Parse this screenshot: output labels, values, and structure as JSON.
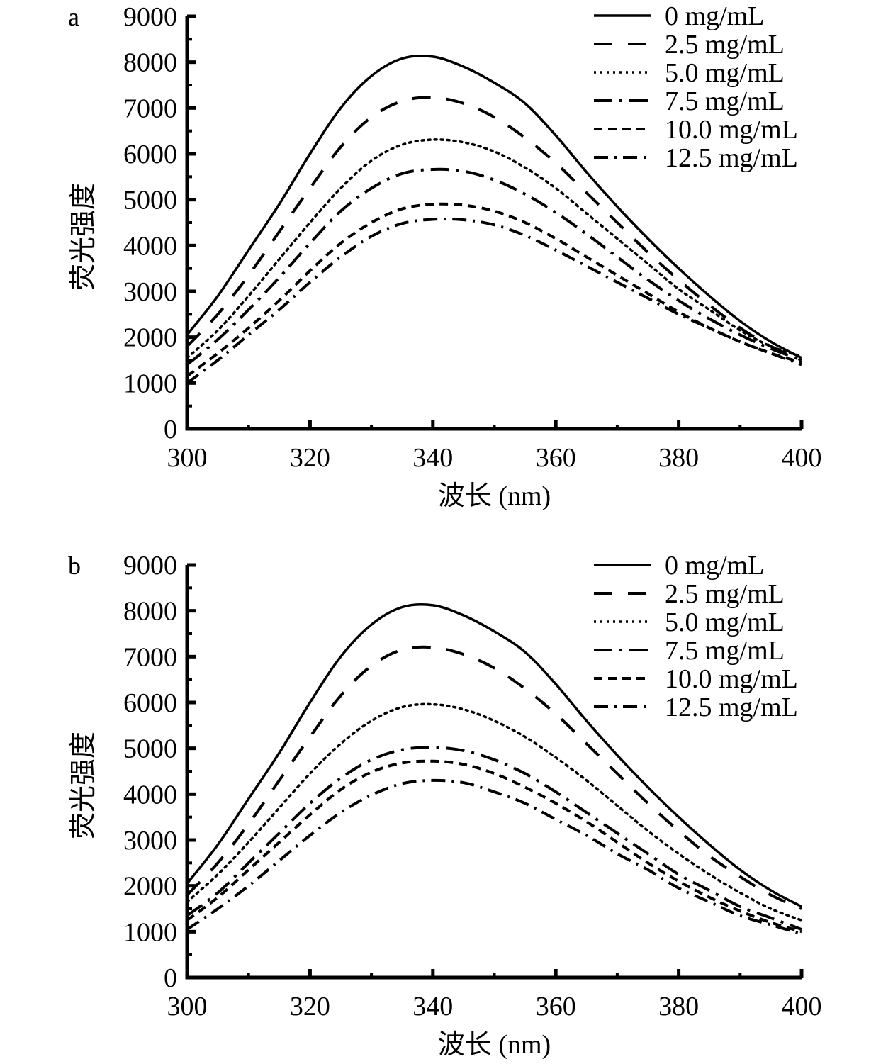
{
  "chart_data": [
    {
      "type": "line",
      "panel_label": "a",
      "title": "",
      "xlabel": "波长 (nm)",
      "ylabel": "荧光强度",
      "xlim": [
        300,
        400
      ],
      "ylim": [
        0,
        9000
      ],
      "xticks": [
        300,
        320,
        340,
        360,
        380,
        400
      ],
      "yticks": [
        0,
        1000,
        2000,
        3000,
        4000,
        5000,
        6000,
        7000,
        8000,
        9000
      ],
      "grid": false,
      "legend_position": "top-right",
      "x": [
        300,
        305,
        310,
        315,
        320,
        325,
        330,
        335,
        340,
        345,
        350,
        355,
        360,
        365,
        370,
        375,
        380,
        385,
        390,
        395,
        400
      ],
      "series": [
        {
          "name": "0 mg/mL",
          "style": "solid",
          "values": [
            2050,
            2900,
            3900,
            4900,
            6000,
            7000,
            7700,
            8080,
            8120,
            7900,
            7550,
            7100,
            6400,
            5600,
            4850,
            4150,
            3500,
            2900,
            2350,
            1900,
            1550
          ]
        },
        {
          "name": "2.5 mg/mL",
          "style": "dash",
          "values": [
            1800,
            2500,
            3350,
            4300,
            5250,
            6150,
            6800,
            7150,
            7230,
            7100,
            6800,
            6350,
            5800,
            5150,
            4500,
            3850,
            3250,
            2700,
            2200,
            1800,
            1500
          ]
        },
        {
          "name": "5.0 mg/mL",
          "style": "dot",
          "values": [
            1550,
            2150,
            2900,
            3700,
            4500,
            5250,
            5850,
            6200,
            6310,
            6250,
            6050,
            5700,
            5250,
            4700,
            4150,
            3600,
            3050,
            2600,
            2150,
            1800,
            1580
          ]
        },
        {
          "name": "7.5 mg/mL",
          "style": "dash-dot-dash",
          "values": [
            1400,
            1950,
            2600,
            3300,
            4050,
            4750,
            5250,
            5570,
            5660,
            5620,
            5430,
            5120,
            4720,
            4250,
            3750,
            3250,
            2800,
            2400,
            2050,
            1750,
            1500
          ]
        },
        {
          "name": "10.0 mg/mL",
          "style": "short-dash",
          "values": [
            1150,
            1650,
            2200,
            2800,
            3450,
            4050,
            4500,
            4800,
            4900,
            4880,
            4750,
            4500,
            4150,
            3750,
            3350,
            2950,
            2550,
            2200,
            1900,
            1650,
            1450
          ]
        },
        {
          "name": "12.5 mg/mL",
          "style": "dash-dot",
          "values": [
            1000,
            1500,
            2050,
            2600,
            3200,
            3750,
            4200,
            4480,
            4570,
            4560,
            4450,
            4220,
            3900,
            3550,
            3200,
            2850,
            2500,
            2200,
            1900,
            1650,
            1400
          ]
        }
      ]
    },
    {
      "type": "line",
      "panel_label": "b",
      "title": "",
      "xlabel": "波长 (nm)",
      "ylabel": "荧光强度",
      "xlim": [
        300,
        400
      ],
      "ylim": [
        0,
        9000
      ],
      "xticks": [
        300,
        320,
        340,
        360,
        380,
        400
      ],
      "yticks": [
        0,
        1000,
        2000,
        3000,
        4000,
        5000,
        6000,
        7000,
        8000,
        9000
      ],
      "grid": false,
      "legend_position": "top-right",
      "x": [
        300,
        305,
        310,
        315,
        320,
        325,
        330,
        335,
        340,
        345,
        350,
        355,
        360,
        365,
        370,
        375,
        380,
        385,
        390,
        395,
        400
      ],
      "series": [
        {
          "name": "0 mg/mL",
          "style": "solid",
          "values": [
            2050,
            2900,
            3900,
            4900,
            6000,
            7000,
            7700,
            8080,
            8120,
            7900,
            7550,
            7100,
            6400,
            5600,
            4850,
            4150,
            3500,
            2900,
            2350,
            1900,
            1550
          ]
        },
        {
          "name": "2.5 mg/mL",
          "style": "dash",
          "values": [
            1800,
            2500,
            3350,
            4300,
            5250,
            6150,
            6800,
            7150,
            7200,
            7050,
            6750,
            6300,
            5750,
            5100,
            4450,
            3800,
            3200,
            2650,
            2200,
            1800,
            1500
          ]
        },
        {
          "name": "5.0 mg/mL",
          "style": "dot",
          "values": [
            1650,
            2250,
            2950,
            3700,
            4450,
            5100,
            5600,
            5900,
            5960,
            5850,
            5600,
            5250,
            4800,
            4300,
            3750,
            3200,
            2700,
            2250,
            1850,
            1500,
            1250
          ]
        },
        {
          "name": "7.5 mg/mL",
          "style": "dash-dot-dash",
          "values": [
            1350,
            1850,
            2500,
            3150,
            3800,
            4350,
            4750,
            4970,
            5020,
            4950,
            4750,
            4450,
            4050,
            3600,
            3150,
            2700,
            2250,
            1900,
            1550,
            1300,
            1050
          ]
        },
        {
          "name": "10.0 mg/mL",
          "style": "short-dash",
          "values": [
            1250,
            1750,
            2350,
            2950,
            3550,
            4100,
            4480,
            4680,
            4720,
            4650,
            4450,
            4150,
            3800,
            3400,
            2950,
            2500,
            2100,
            1750,
            1450,
            1200,
            1000
          ]
        },
        {
          "name": "12.5 mg/mL",
          "style": "dash-dot",
          "values": [
            1050,
            1500,
            2000,
            2550,
            3100,
            3600,
            3980,
            4230,
            4300,
            4250,
            4050,
            3800,
            3450,
            3100,
            2700,
            2350,
            1950,
            1650,
            1350,
            1150,
            950
          ]
        }
      ]
    }
  ]
}
